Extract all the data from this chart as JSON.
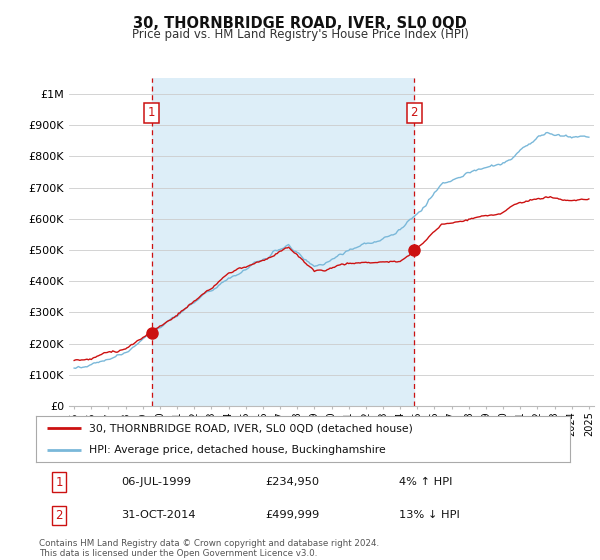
{
  "title": "30, THORNBRIDGE ROAD, IVER, SL0 0QD",
  "subtitle": "Price paid vs. HM Land Registry's House Price Index (HPI)",
  "ylim": [
    0,
    1050000
  ],
  "yticks": [
    0,
    100000,
    200000,
    300000,
    400000,
    500000,
    600000,
    700000,
    800000,
    900000,
    1000000
  ],
  "ytick_labels": [
    "£0",
    "£100K",
    "£200K",
    "£300K",
    "£400K",
    "£500K",
    "£600K",
    "£700K",
    "£800K",
    "£900K",
    "£1M"
  ],
  "hpi_color": "#7ab8d9",
  "price_color": "#cc1111",
  "vline_color": "#cc1111",
  "background_color": "#ffffff",
  "shading_color": "#ddeef8",
  "grid_color": "#cccccc",
  "sale1_date_num": 1999.51,
  "sale1_price": 234950,
  "sale1_label": "1",
  "sale2_date_num": 2014.83,
  "sale2_price": 499999,
  "sale2_label": "2",
  "legend_entry1": "30, THORNBRIDGE ROAD, IVER, SL0 0QD (detached house)",
  "legend_entry2": "HPI: Average price, detached house, Buckinghamshire",
  "table_row1": [
    "1",
    "06-JUL-1999",
    "£234,950",
    "4% ↑ HPI"
  ],
  "table_row2": [
    "2",
    "31-OCT-2014",
    "£499,999",
    "13% ↓ HPI"
  ],
  "footer": "Contains HM Land Registry data © Crown copyright and database right 2024.\nThis data is licensed under the Open Government Licence v3.0.",
  "xmin": 1994.7,
  "xmax": 2025.3
}
